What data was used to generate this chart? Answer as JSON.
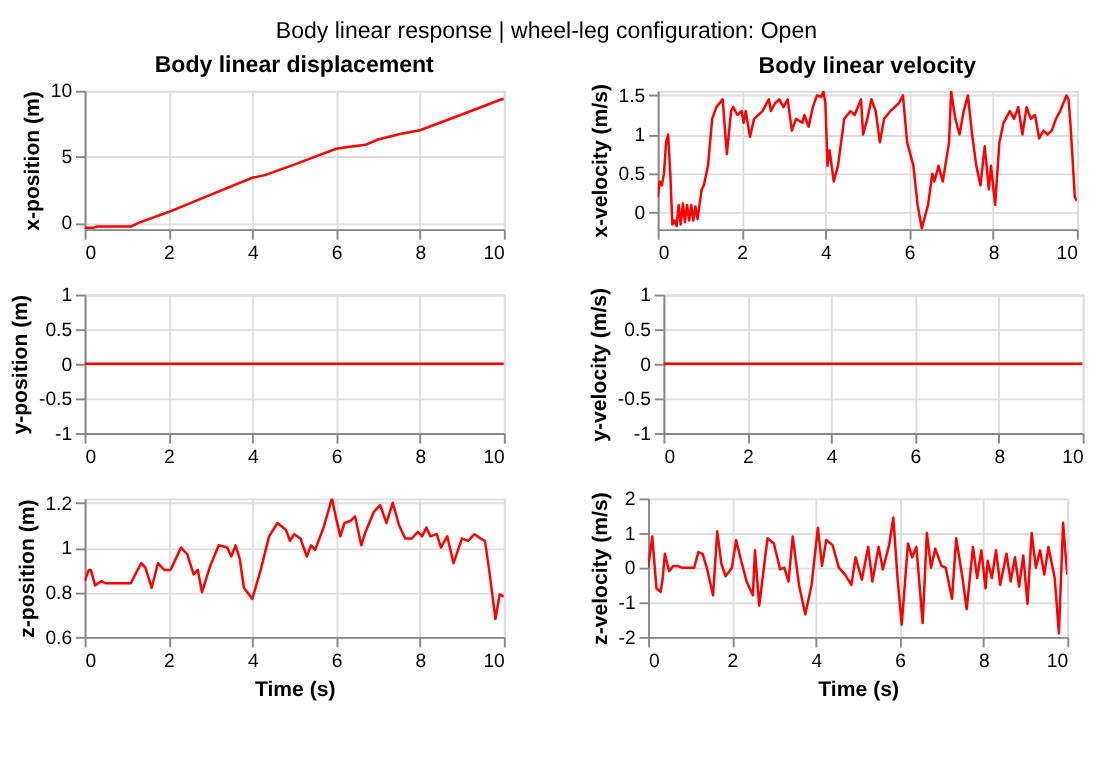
{
  "chart_data": [
    {
      "type": "line",
      "annotations": [
        "Body linear response  |  wheel-leg configuration: Open"
      ],
      "title": "Body linear displacement",
      "ylabel": "x-position (m)",
      "color": "#ff0000",
      "grid": true,
      "xlim": [
        0,
        10
      ],
      "xticks": [
        0,
        2,
        4,
        6,
        8,
        10
      ],
      "ylim": [
        -0.5,
        10
      ],
      "yticks": [
        0,
        5,
        10
      ],
      "x": [
        0,
        0.2,
        0.3,
        1.1,
        1.3,
        2,
        3,
        4,
        4.3,
        5,
        5.5,
        6,
        6.2,
        6.7,
        7,
        7.5,
        8,
        9,
        9.9,
        10
      ],
      "values": [
        -0.4,
        -0.4,
        -0.3,
        -0.3,
        0,
        0.8,
        2.1,
        3.4,
        3.6,
        4.4,
        5,
        5.6,
        5.7,
        5.9,
        6.3,
        6.7,
        7,
        8.2,
        9.3,
        9.4
      ]
    },
    {
      "type": "line",
      "title": "Body linear velocity",
      "ylabel": "x-velocity (m/s)",
      "color": "#ff0000",
      "grid": true,
      "xlim": [
        0,
        10
      ],
      "xticks": [
        0,
        2,
        4,
        6,
        8,
        10
      ],
      "ylim": [
        -0.21,
        1.56
      ],
      "yticks": [
        0,
        0.5,
        1,
        1.5
      ],
      "x": [
        0,
        0.05,
        0.1,
        0.15,
        0.2,
        0.25,
        0.3,
        0.35,
        0.4,
        0.45,
        0.5,
        0.55,
        0.6,
        0.65,
        0.7,
        0.75,
        0.8,
        0.85,
        0.9,
        0.95,
        1.05,
        1.1,
        1.2,
        1.3,
        1.4,
        1.55,
        1.65,
        1.75,
        1.8,
        1.9,
        2.0,
        2.05,
        2.1,
        2.2,
        2.3,
        2.5,
        2.65,
        2.7,
        2.8,
        2.9,
        3.0,
        3.1,
        3.2,
        3.3,
        3.45,
        3.5,
        3.6,
        3.7,
        3.8,
        3.9,
        3.95,
        4.0,
        4.05,
        4.1,
        4.2,
        4.3,
        4.45,
        4.6,
        4.7,
        4.85,
        4.9,
        5.0,
        5.1,
        5.2,
        5.3,
        5.4,
        5.55,
        5.75,
        5.85,
        5.95,
        6.1,
        6.2,
        6.3,
        6.45,
        6.55,
        6.6,
        6.7,
        6.8,
        6.95,
        7.0,
        7.1,
        7.2,
        7.3,
        7.4,
        7.5,
        7.6,
        7.7,
        7.8,
        7.9,
        7.95,
        8.05,
        8.15,
        8.25,
        8.4,
        8.5,
        8.6,
        8.7,
        8.8,
        8.9,
        9.0,
        9.1,
        9.2,
        9.3,
        9.4,
        9.5,
        9.6,
        9.75,
        9.8,
        9.85,
        9.95,
        10
      ],
      "values": [
        0.2,
        0.4,
        0.35,
        0.5,
        0.9,
        1.0,
        0.5,
        -0.15,
        -0.1,
        -0.17,
        0.1,
        -0.15,
        0.12,
        -0.12,
        0.1,
        -0.1,
        0.1,
        -0.1,
        0.08,
        -0.08,
        0.3,
        0.35,
        0.6,
        1.2,
        1.35,
        1.45,
        0.75,
        1.3,
        1.35,
        1.25,
        1.3,
        1.15,
        1.3,
        0.97,
        1.2,
        1.3,
        1.45,
        1.3,
        1.4,
        1.45,
        1.35,
        1.45,
        1.05,
        1.2,
        1.15,
        1.25,
        1.1,
        1.35,
        1.5,
        1.48,
        1.55,
        1.4,
        0.6,
        0.8,
        0.4,
        0.6,
        1.2,
        1.3,
        1.25,
        1.45,
        1.0,
        1.2,
        1.45,
        1.3,
        0.9,
        1.2,
        1.3,
        1.4,
        1.5,
        0.9,
        0.6,
        0.1,
        -0.2,
        0.1,
        0.5,
        0.4,
        0.6,
        0.4,
        0.9,
        1.55,
        1.2,
        1.0,
        1.3,
        1.5,
        1.0,
        0.6,
        0.35,
        0.85,
        0.3,
        0.6,
        0.1,
        0.9,
        1.15,
        1.3,
        1.2,
        1.35,
        1.0,
        1.35,
        1.2,
        1.25,
        0.95,
        1.05,
        1.0,
        1.05,
        1.2,
        1.3,
        1.5,
        1.45,
        1.1,
        0.2,
        0.15
      ]
    },
    {
      "type": "line",
      "ylabel": "y-position (m)",
      "color": "#ff0000",
      "grid": true,
      "xlim": [
        0,
        10
      ],
      "xticks": [
        0,
        2,
        4,
        6,
        8,
        10
      ],
      "ylim": [
        -1,
        1
      ],
      "yticks": [
        -1,
        -0.5,
        0,
        0.5,
        1
      ],
      "x": [
        0,
        10
      ],
      "values": [
        0,
        0
      ]
    },
    {
      "type": "line",
      "ylabel": "y-velocity (m/s)",
      "color": "#ff0000",
      "grid": true,
      "xlim": [
        0,
        10
      ],
      "xticks": [
        0,
        2,
        4,
        6,
        8,
        10
      ],
      "ylim": [
        -1,
        1
      ],
      "yticks": [
        -1,
        -0.5,
        0,
        0.5,
        1
      ],
      "x": [
        0,
        10
      ],
      "values": [
        0,
        0
      ]
    },
    {
      "type": "line",
      "xlabel": "Time (s)",
      "ylabel": "z-position (m)",
      "color": "#ff0000",
      "grid": true,
      "xlim": [
        0,
        10
      ],
      "xticks": [
        0,
        2,
        4,
        6,
        8,
        10
      ],
      "ylim": [
        0.6,
        1.22
      ],
      "yticks": [
        0.6,
        0.8,
        1,
        1.2
      ],
      "x": [
        0,
        0.1,
        0.15,
        0.25,
        0.4,
        0.5,
        1.1,
        1.35,
        1.45,
        1.6,
        1.75,
        1.9,
        2.05,
        2.3,
        2.45,
        2.6,
        2.7,
        2.8,
        3.0,
        3.2,
        3.4,
        3.5,
        3.6,
        3.7,
        3.8,
        4.0,
        4.2,
        4.4,
        4.6,
        4.8,
        4.9,
        5.0,
        5.15,
        5.3,
        5.4,
        5.5,
        5.7,
        5.9,
        6.0,
        6.1,
        6.2,
        6.35,
        6.45,
        6.6,
        6.7,
        6.9,
        7.05,
        7.2,
        7.35,
        7.5,
        7.65,
        7.8,
        7.95,
        8.05,
        8.15,
        8.25,
        8.4,
        8.5,
        8.65,
        8.8,
        9.0,
        9.15,
        9.3,
        9.45,
        9.55,
        9.65,
        9.8,
        9.9,
        10
      ],
      "values": [
        0.85,
        0.9,
        0.9,
        0.83,
        0.85,
        0.84,
        0.84,
        0.93,
        0.91,
        0.82,
        0.93,
        0.9,
        0.9,
        1.0,
        0.97,
        0.88,
        0.9,
        0.8,
        0.92,
        1.01,
        1.0,
        0.96,
        1.01,
        0.95,
        0.82,
        0.77,
        0.9,
        1.05,
        1.11,
        1.08,
        1.03,
        1.06,
        1.04,
        0.96,
        1.01,
        0.99,
        1.09,
        1.22,
        1.13,
        1.05,
        1.11,
        1.12,
        1.14,
        1.01,
        1.07,
        1.16,
        1.19,
        1.11,
        1.2,
        1.1,
        1.04,
        1.04,
        1.07,
        1.05,
        1.09,
        1.05,
        1.06,
        1.0,
        1.05,
        0.93,
        1.04,
        1.03,
        1.06,
        1.04,
        1.03,
        0.9,
        0.68,
        0.79,
        0.78
      ]
    },
    {
      "type": "line",
      "xlabel": "Time (s)",
      "ylabel": "z-velocity (m/s)",
      "color": "#ff0000",
      "grid": true,
      "xlim": [
        0,
        10
      ],
      "xticks": [
        0,
        2,
        4,
        6,
        8,
        10
      ],
      "ylim": [
        -2,
        2
      ],
      "yticks": [
        -2,
        -1,
        0,
        1,
        2
      ],
      "x": [
        0,
        0.1,
        0.2,
        0.3,
        0.35,
        0.4,
        0.5,
        0.6,
        0.7,
        0.8,
        1.1,
        1.2,
        1.3,
        1.4,
        1.55,
        1.65,
        1.75,
        1.85,
        2.0,
        2.1,
        2.2,
        2.35,
        2.5,
        2.55,
        2.65,
        2.85,
        3.0,
        3.15,
        3.25,
        3.35,
        3.45,
        3.6,
        3.75,
        3.9,
        4.05,
        4.15,
        4.25,
        4.4,
        4.55,
        4.7,
        4.85,
        4.95,
        5.1,
        5.25,
        5.35,
        5.5,
        5.6,
        5.75,
        5.85,
        5.95,
        6.05,
        6.2,
        6.3,
        6.4,
        6.55,
        6.65,
        6.75,
        6.85,
        7.0,
        7.1,
        7.25,
        7.35,
        7.5,
        7.6,
        7.75,
        7.85,
        7.95,
        8.05,
        8.1,
        8.2,
        8.3,
        8.4,
        8.55,
        8.65,
        8.75,
        8.85,
        8.95,
        9.05,
        9.15,
        9.25,
        9.35,
        9.45,
        9.55,
        9.7,
        9.8,
        9.9,
        9.95,
        10
      ],
      "values": [
        0,
        0.9,
        -0.6,
        -0.7,
        -0.3,
        0.4,
        -0.1,
        0.05,
        0.05,
        0.0,
        0.0,
        0.45,
        0.4,
        0.0,
        -0.8,
        1.05,
        0.1,
        -0.25,
        0.0,
        0.8,
        0.3,
        -0.4,
        -0.8,
        0.5,
        -1.1,
        0.85,
        0.7,
        -0.05,
        0.0,
        -0.4,
        0.9,
        -0.5,
        -1.35,
        -0.5,
        1.15,
        0.05,
        0.8,
        0.65,
        0.0,
        -0.2,
        -0.5,
        0.3,
        -0.35,
        0.6,
        -0.4,
        0.6,
        -0.05,
        0.65,
        1.45,
        -0.3,
        -1.65,
        0.7,
        0.3,
        0.6,
        -1.6,
        1.0,
        0.0,
        0.55,
        0.05,
        0.0,
        -0.9,
        0.85,
        -0.3,
        -1.2,
        0.6,
        -0.3,
        0.5,
        -0.6,
        0.2,
        -0.3,
        0.5,
        -0.5,
        0.4,
        -0.4,
        0.3,
        -0.55,
        0.35,
        -1.05,
        1.0,
        0.0,
        0.5,
        -0.2,
        0.6,
        -0.3,
        -1.9,
        1.3,
        0.5,
        -0.2
      ]
    }
  ]
}
